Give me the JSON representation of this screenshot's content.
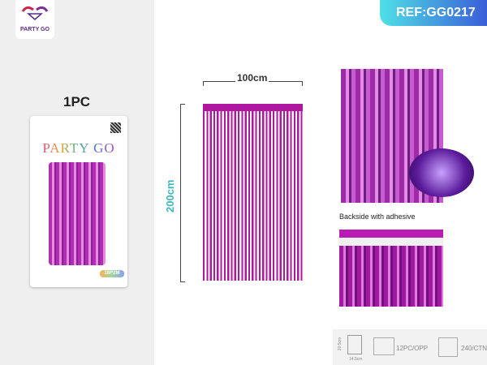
{
  "logo": {
    "text": "PARTY GO"
  },
  "left": {
    "quantity": "1PC",
    "package": {
      "brand": "PARTY GO",
      "size_badge": "1M*2M"
    }
  },
  "ref": "REF:GG0217",
  "dimensions": {
    "width": "100cm",
    "height": "200cm"
  },
  "colors": {
    "curtain": "#b0179f",
    "ref_gradient_start": "#4fe0e6",
    "ref_gradient_end": "#3a5ed8"
  },
  "adhesive_label": "Backside with adhesive",
  "info": {
    "pkg_height": "20.5cm",
    "pkg_width": "14.5cm",
    "inner": "12PC/OPP",
    "carton": "240/CTN"
  }
}
